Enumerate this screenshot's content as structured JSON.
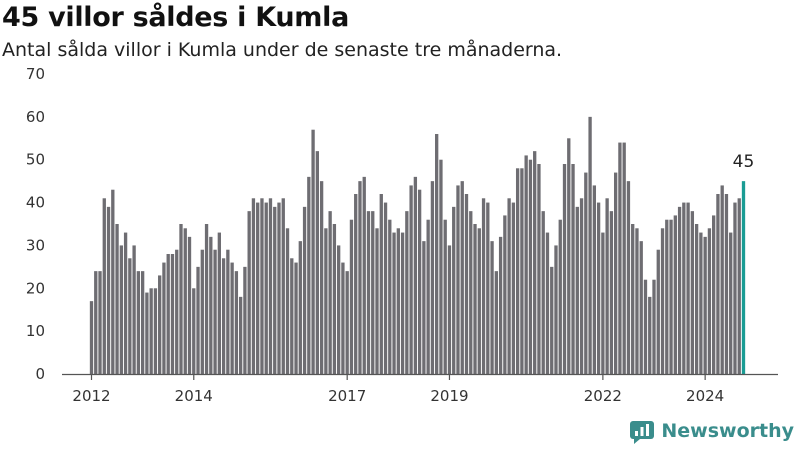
{
  "header": {
    "title": "45 villor såldes i Kumla",
    "subtitle": "Antal sålda villor i Kumla under de senaste tre månaderna."
  },
  "brand": {
    "name": "Newsworthy"
  },
  "colors": {
    "bar": "#6e6d72",
    "highlight": "#1a9c94",
    "axis": "#555555"
  },
  "chart_data": {
    "type": "bar",
    "title": "45 villor såldes i Kumla",
    "subtitle": "Antal sålda villor i Kumla under de senaste tre månaderna.",
    "ylim": [
      0,
      70
    ],
    "y_ticks": [
      0,
      10,
      20,
      30,
      40,
      50,
      60,
      70
    ],
    "x_tick_labels": [
      "2012",
      "2014",
      "2017",
      "2019",
      "2022",
      "2024"
    ],
    "grid": false,
    "series": [
      {
        "values": [
          17,
          24,
          24,
          41,
          39,
          43,
          35,
          30,
          33,
          27,
          30,
          24,
          24,
          19,
          20,
          20,
          23,
          26,
          28,
          28,
          29,
          35,
          34,
          32,
          20,
          25,
          29,
          35,
          32,
          29,
          33,
          27,
          29,
          26,
          24,
          18,
          25,
          38,
          41,
          40,
          41,
          40,
          41,
          39,
          40,
          41,
          34,
          27,
          26,
          31,
          39,
          46,
          57,
          52,
          45,
          34,
          38,
          35,
          30,
          26,
          24,
          36,
          42,
          45,
          46,
          38,
          38,
          34,
          42,
          40,
          36,
          33,
          34,
          33,
          38,
          44,
          46,
          43,
          31,
          36,
          45,
          56,
          50,
          36,
          30,
          39,
          44,
          45,
          42,
          38,
          35,
          34,
          41,
          40,
          31,
          24,
          32,
          37,
          41,
          40,
          48,
          48,
          51,
          50,
          52,
          49,
          38,
          33,
          25,
          30,
          36,
          49,
          55,
          49,
          39,
          41,
          47,
          60,
          44,
          40,
          33,
          41,
          38,
          47,
          54,
          54,
          45,
          35,
          34,
          31,
          22,
          18,
          22,
          29,
          34,
          36,
          36,
          37,
          39,
          40,
          40,
          38,
          35,
          33,
          32,
          34,
          37,
          42,
          44,
          42,
          33,
          40,
          41,
          45
        ]
      }
    ],
    "highlight_last": true,
    "annotation": {
      "label": "45",
      "value": 45
    }
  }
}
